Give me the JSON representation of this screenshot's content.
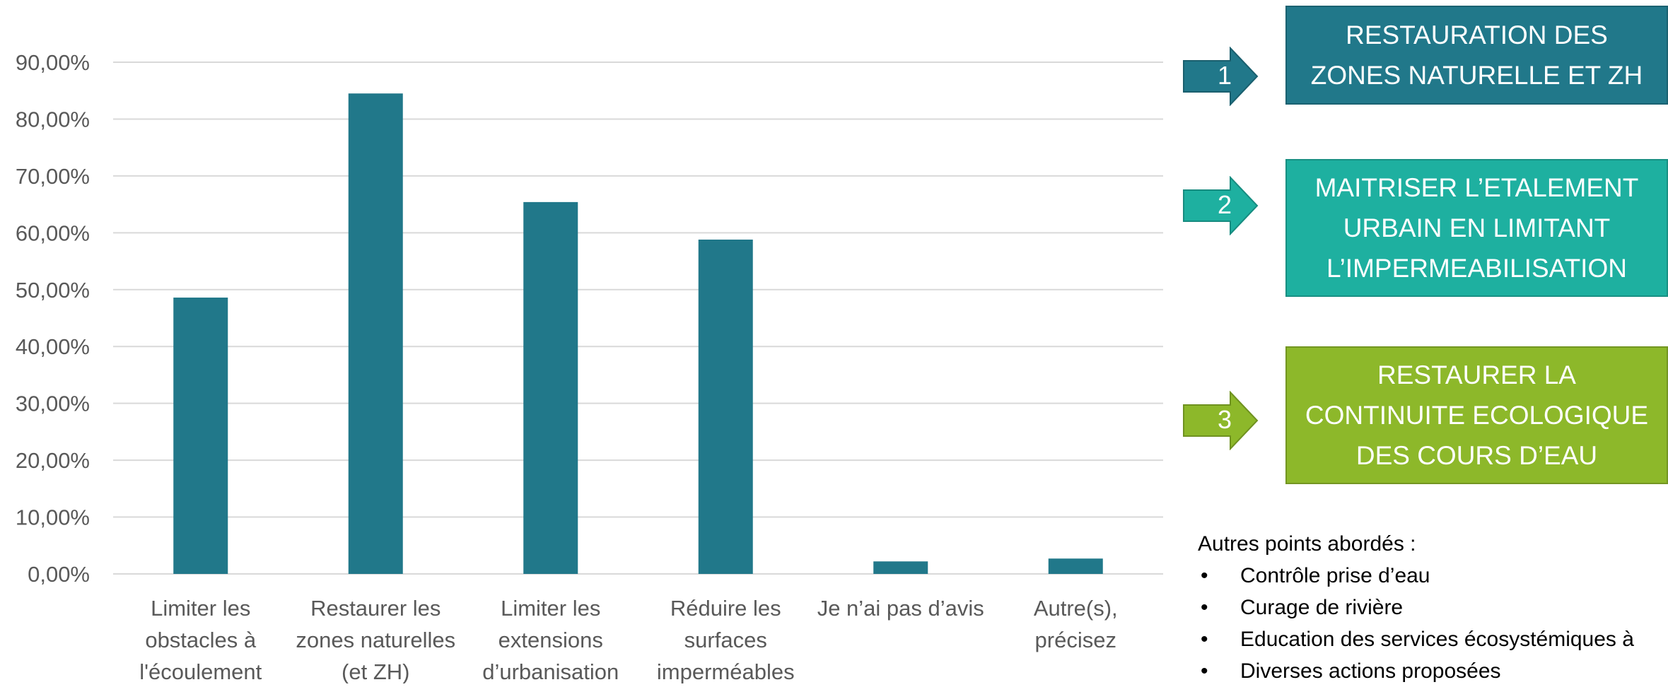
{
  "chart_data": {
    "type": "bar",
    "categories": [
      [
        "Limiter les",
        "obstacles à",
        "l'écoulement"
      ],
      [
        "Restaurer les",
        "zones naturelles",
        "(et ZH)"
      ],
      [
        "Limiter les",
        "extensions",
        "d’urbanisation"
      ],
      [
        "Réduire les",
        "surfaces",
        "imperméables"
      ],
      [
        "Je n’ai pas d’avis"
      ],
      [
        "Autre(s),",
        "précisez"
      ]
    ],
    "values": [
      48.6,
      84.5,
      65.4,
      58.8,
      2.2,
      2.7
    ],
    "ylim": [
      0,
      90
    ],
    "yticks": [
      "0,00%",
      "10,00%",
      "20,00%",
      "30,00%",
      "40,00%",
      "50,00%",
      "60,00%",
      "70,00%",
      "80,00%",
      "90,00%"
    ],
    "grid": true,
    "bar_color": "#21788a"
  },
  "priorities": [
    {
      "number": "1",
      "lines": [
        "RESTAURATION DES",
        "ZONES NATURELLE ET ZH"
      ],
      "color": "#21788a"
    },
    {
      "number": "2",
      "lines": [
        "MAITRISER L’ETALEMENT",
        "URBAIN EN LIMITANT",
        "L’IMPERMEABILISATION"
      ],
      "color": "#1eb0a0"
    },
    {
      "number": "3",
      "lines": [
        "RESTAURER LA",
        "CONTINUITE ECOLOGIQUE",
        "DES COURS D’EAU"
      ],
      "color": "#8db82a"
    }
  ],
  "other_points": {
    "title": "Autres points abordés :",
    "bullet": "•",
    "items": [
      "Contrôle prise d’eau",
      "Curage de rivière",
      "Education des services écosystémiques à",
      "Diverses actions proposées"
    ]
  }
}
